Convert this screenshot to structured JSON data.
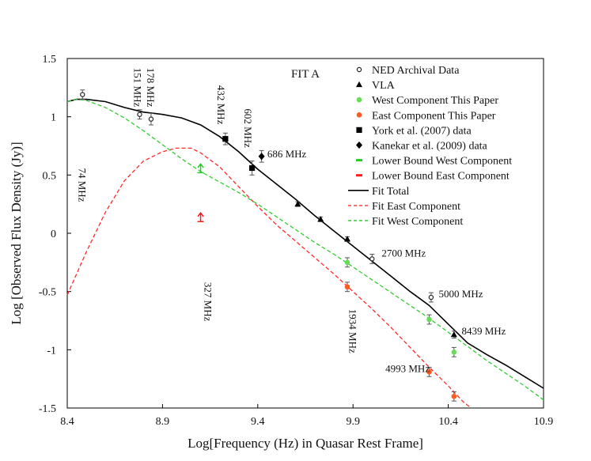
{
  "chart_data": {
    "type": "scatter",
    "title": "FIT A",
    "xlabel": "Log[Frequency (Hz) in Quasar Rest Frame]",
    "ylabel": "Log [Observed Flux Density (Jy)]",
    "xlim": [
      8.4,
      10.9
    ],
    "ylim": [
      -1.5,
      1.5
    ],
    "x_ticks": [
      8.4,
      8.9,
      9.4,
      9.9,
      10.4,
      10.9
    ],
    "x_tick_labels": [
      "8.4",
      "8.9",
      "9.4",
      "9.9",
      "10.4",
      "10.9"
    ],
    "y_ticks": [
      1.5,
      1,
      0.5,
      0,
      -0.5,
      -1,
      -1.5
    ],
    "y_tick_labels": [
      "1.5",
      "1",
      "0.5",
      "0",
      "-0.5",
      "-1",
      "-1.5"
    ],
    "legend_position": "top-right",
    "legend": [
      {
        "label": "NED Archival Data",
        "symbol": "open-circle",
        "color": "#222222"
      },
      {
        "label": "VLA",
        "symbol": "triangle",
        "color": "#000000"
      },
      {
        "label": "West Component This Paper",
        "symbol": "dot",
        "color": "#66dd55"
      },
      {
        "label": "East Component This Paper",
        "symbol": "dot",
        "color": "#ff5a1f"
      },
      {
        "label": "York et al. (2007) data",
        "symbol": "square",
        "color": "#000000"
      },
      {
        "label": "Kanekar et al. (2009) data",
        "symbol": "diamond",
        "color": "#000000"
      },
      {
        "label": "Lower Bound West Component",
        "symbol": "dash",
        "color": "#22cc22"
      },
      {
        "label": "Lower Bound East Component",
        "symbol": "dash",
        "color": "#ff1a1a"
      },
      {
        "label": "Fit Total",
        "symbol": "solid-line",
        "color": "#000000"
      },
      {
        "label": "Fit East Component",
        "symbol": "dashed-line",
        "color": "#ff2a2a"
      },
      {
        "label": "Fit West Component",
        "symbol": "dashed-line",
        "color": "#33cc33"
      }
    ],
    "series": [
      {
        "name": "NED Archival Data",
        "marker": "open-circle",
        "color": "#222222",
        "points": [
          [
            8.48,
            1.19,
            0.04
          ],
          [
            8.78,
            1.02,
            0.04
          ],
          [
            8.84,
            0.98,
            0.05
          ],
          [
            10.0,
            -0.22,
            0.04
          ],
          [
            10.31,
            -0.55,
            0.04
          ]
        ]
      },
      {
        "name": "VLA",
        "marker": "triangle",
        "color": "#000000",
        "points": [
          [
            9.61,
            0.25,
            0.02
          ],
          [
            9.73,
            0.12,
            0.02
          ],
          [
            9.87,
            -0.05,
            0.02
          ],
          [
            10.43,
            -0.87,
            0.03
          ]
        ]
      },
      {
        "name": "West Component This Paper",
        "marker": "dot",
        "color": "#66dd55",
        "points": [
          [
            9.87,
            -0.25,
            0.04
          ],
          [
            10.3,
            -0.74,
            0.04
          ],
          [
            10.43,
            -1.02,
            0.04
          ]
        ]
      },
      {
        "name": "East Component This Paper",
        "marker": "dot",
        "color": "#ff5a1f",
        "points": [
          [
            9.87,
            -0.46,
            0.04
          ],
          [
            10.3,
            -1.19,
            0.04
          ],
          [
            10.43,
            -1.4,
            0.04
          ]
        ]
      },
      {
        "name": "York et al. (2007) data",
        "marker": "square",
        "color": "#000000",
        "points": [
          [
            9.23,
            0.81,
            0.05
          ],
          [
            9.37,
            0.56,
            0.06
          ]
        ]
      },
      {
        "name": "Kanekar et al. (2009) data",
        "marker": "diamond",
        "color": "#000000",
        "points": [
          [
            9.42,
            0.66,
            0.05
          ]
        ]
      },
      {
        "name": "Lower Bound West Component",
        "marker": "up-arrow",
        "color": "#22cc22",
        "points": [
          [
            9.1,
            0.52
          ]
        ]
      },
      {
        "name": "Lower Bound East Component",
        "marker": "up-arrow",
        "color": "#ff1a1a",
        "points": [
          [
            9.1,
            0.1
          ]
        ]
      }
    ],
    "curves": [
      {
        "name": "Fit Total",
        "style": "solid",
        "color": "#000000",
        "points": [
          [
            8.4,
            1.13
          ],
          [
            8.45,
            1.15
          ],
          [
            8.5,
            1.15
          ],
          [
            8.6,
            1.13
          ],
          [
            8.7,
            1.08
          ],
          [
            8.8,
            1.04
          ],
          [
            8.85,
            1.03
          ],
          [
            8.9,
            1.02
          ],
          [
            9.0,
            0.99
          ],
          [
            9.1,
            0.93
          ],
          [
            9.2,
            0.83
          ],
          [
            9.3,
            0.7
          ],
          [
            9.4,
            0.55
          ],
          [
            9.5,
            0.42
          ],
          [
            9.6,
            0.29
          ],
          [
            9.7,
            0.15
          ],
          [
            9.8,
            0.02
          ],
          [
            9.9,
            -0.11
          ],
          [
            10.0,
            -0.24
          ],
          [
            10.1,
            -0.37
          ],
          [
            10.2,
            -0.5
          ],
          [
            10.3,
            -0.62
          ],
          [
            10.4,
            -0.78
          ],
          [
            10.5,
            -0.94
          ],
          [
            10.6,
            -1.04
          ],
          [
            10.7,
            -1.13
          ],
          [
            10.8,
            -1.23
          ],
          [
            10.9,
            -1.33
          ]
        ]
      },
      {
        "name": "Fit East Component",
        "style": "dashed",
        "color": "#ff2a2a",
        "points": [
          [
            8.4,
            -0.53
          ],
          [
            8.5,
            -0.16
          ],
          [
            8.6,
            0.18
          ],
          [
            8.7,
            0.45
          ],
          [
            8.8,
            0.62
          ],
          [
            8.9,
            0.7
          ],
          [
            8.97,
            0.73
          ],
          [
            9.0,
            0.73
          ],
          [
            9.05,
            0.73
          ],
          [
            9.1,
            0.69
          ],
          [
            9.2,
            0.57
          ],
          [
            9.3,
            0.4
          ],
          [
            9.4,
            0.23
          ],
          [
            9.5,
            0.07
          ],
          [
            9.6,
            -0.07
          ],
          [
            9.7,
            -0.21
          ],
          [
            9.8,
            -0.35
          ],
          [
            9.9,
            -0.5
          ],
          [
            10.0,
            -0.65
          ],
          [
            10.1,
            -0.81
          ],
          [
            10.2,
            -0.98
          ],
          [
            10.3,
            -1.15
          ],
          [
            10.4,
            -1.31
          ],
          [
            10.48,
            -1.45
          ],
          [
            10.52,
            -1.5
          ]
        ]
      },
      {
        "name": "Fit West Component",
        "style": "dashed",
        "color": "#33cc33",
        "points": [
          [
            8.4,
            1.13
          ],
          [
            8.45,
            1.15
          ],
          [
            8.5,
            1.14
          ],
          [
            8.6,
            1.08
          ],
          [
            8.7,
            0.99
          ],
          [
            8.8,
            0.88
          ],
          [
            8.9,
            0.76
          ],
          [
            9.0,
            0.64
          ],
          [
            9.1,
            0.53
          ],
          [
            9.2,
            0.44
          ],
          [
            9.3,
            0.35
          ],
          [
            9.4,
            0.25
          ],
          [
            9.5,
            0.14
          ],
          [
            9.6,
            0.03
          ],
          [
            9.7,
            -0.08
          ],
          [
            9.8,
            -0.18
          ],
          [
            9.9,
            -0.29
          ],
          [
            10.0,
            -0.4
          ],
          [
            10.1,
            -0.51
          ],
          [
            10.2,
            -0.62
          ],
          [
            10.3,
            -0.73
          ],
          [
            10.4,
            -0.85
          ],
          [
            10.5,
            -0.97
          ],
          [
            10.6,
            -1.09
          ],
          [
            10.7,
            -1.2
          ],
          [
            10.8,
            -1.31
          ],
          [
            10.9,
            -1.43
          ]
        ]
      }
    ],
    "annotations": [
      {
        "text": "74 MHz",
        "x": 8.46,
        "y": 0.56,
        "rotation": 90
      },
      {
        "text": "151 MHz",
        "x": 8.75,
        "y": 1.42,
        "rotation": 90
      },
      {
        "text": "178 MHz",
        "x": 8.82,
        "y": 1.42,
        "rotation": 90
      },
      {
        "text": "327 MHz",
        "x": 9.12,
        "y": -0.42,
        "rotation": 90
      },
      {
        "text": "432 MHz",
        "x": 9.19,
        "y": 1.27,
        "rotation": 90
      },
      {
        "text": "602 MHz",
        "x": 9.33,
        "y": 1.07,
        "rotation": 90
      },
      {
        "text": "686 MHz",
        "x": 9.45,
        "y": 0.65,
        "rotation": 0
      },
      {
        "text": "1934 MHz",
        "x": 9.88,
        "y": -0.65,
        "rotation": 90
      },
      {
        "text": "2700 MHz",
        "x": 10.05,
        "y": -0.2,
        "rotation": 0
      },
      {
        "text": "4993 MHz",
        "x": 10.07,
        "y": -1.19,
        "rotation": 0
      },
      {
        "text": "5000 MHz",
        "x": 10.35,
        "y": -0.55,
        "rotation": 0
      },
      {
        "text": "8439 MHz",
        "x": 10.47,
        "y": -0.87,
        "rotation": 0
      }
    ]
  }
}
